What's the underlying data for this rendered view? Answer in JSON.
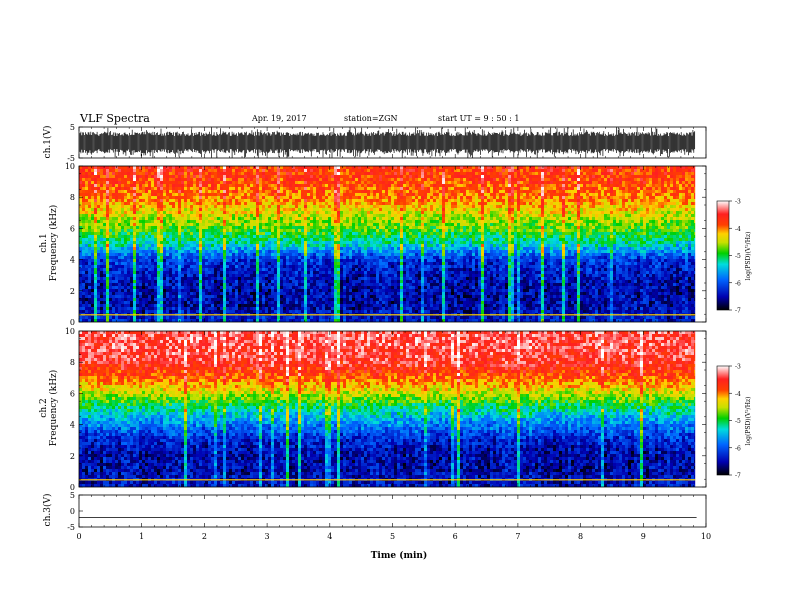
{
  "header": {
    "title": "VLF Spectra",
    "date": "Apr. 19, 2017",
    "station": "station=ZGN",
    "start": "start  UT  =   9 : 50 : 1"
  },
  "chart_data": [
    {
      "type": "line",
      "panel": "ch1-waveform",
      "ylabel": "ch.1(V)",
      "ylim": [
        -5,
        5
      ],
      "y_ticks": [
        "5",
        "-5"
      ],
      "xlim": [
        0,
        10
      ],
      "data_extent": [
        0,
        9.83
      ],
      "description_values": {
        "typical_amplitude": 3.5,
        "max_amplitude": 5
      }
    },
    {
      "type": "heatmap",
      "panel": "ch1-spectrogram",
      "ylabel": "ch.1\nFrequency (kHz)",
      "ylabel_lines": [
        "ch.1",
        "Frequency (kHz)"
      ],
      "ylim": [
        0,
        10
      ],
      "y_ticks": [
        "0",
        "2",
        "4",
        "6",
        "8",
        "10"
      ],
      "xlim": [
        0,
        10
      ],
      "data_extent": [
        0,
        9.83
      ],
      "colorbar": {
        "label": "log(PSD)(V²/Hz)",
        "range": [
          -7,
          -3
        ],
        "ticks": [
          "-3",
          "-4",
          "-5",
          "-6",
          "-7"
        ]
      },
      "profile": {
        "freq_khz": [
          0,
          1,
          2,
          3,
          4,
          5,
          6,
          7,
          8,
          9,
          10
        ],
        "log_psd": [
          -6.3,
          -6.5,
          -6.5,
          -6.4,
          -6.2,
          -5.3,
          -4.8,
          -4.4,
          -4.0,
          -3.8,
          -3.7
        ]
      }
    },
    {
      "type": "heatmap",
      "panel": "ch2-spectrogram",
      "ylabel_lines": [
        "ch.2",
        "Frequency (kHz)"
      ],
      "ylim": [
        0,
        10
      ],
      "y_ticks": [
        "0",
        "2",
        "4",
        "6",
        "8",
        "10"
      ],
      "xlim": [
        0,
        10
      ],
      "data_extent": [
        0,
        9.83
      ],
      "colorbar": {
        "label": "log(PSD)(V²/Hz)",
        "range": [
          -7,
          -3
        ],
        "ticks": [
          "-3",
          "-4",
          "-5",
          "-6",
          "-7"
        ]
      },
      "profile": {
        "freq_khz": [
          0,
          1,
          2,
          3,
          4,
          5,
          6,
          7,
          8,
          9,
          10
        ],
        "log_psd": [
          -6.4,
          -6.5,
          -6.5,
          -6.3,
          -5.8,
          -5.2,
          -4.5,
          -3.9,
          -3.5,
          -3.4,
          -3.4
        ]
      }
    },
    {
      "type": "line",
      "panel": "ch3-waveform",
      "ylabel": "ch.3(V)",
      "ylim": [
        -5,
        5
      ],
      "y_ticks": [
        "5",
        "0",
        "-5"
      ],
      "xlim": [
        0,
        10
      ],
      "values_constant": -2,
      "xlabel": "Time (min)",
      "x_ticks": [
        "0",
        "1",
        "2",
        "3",
        "4",
        "5",
        "6",
        "7",
        "8",
        "9",
        "10"
      ]
    }
  ]
}
